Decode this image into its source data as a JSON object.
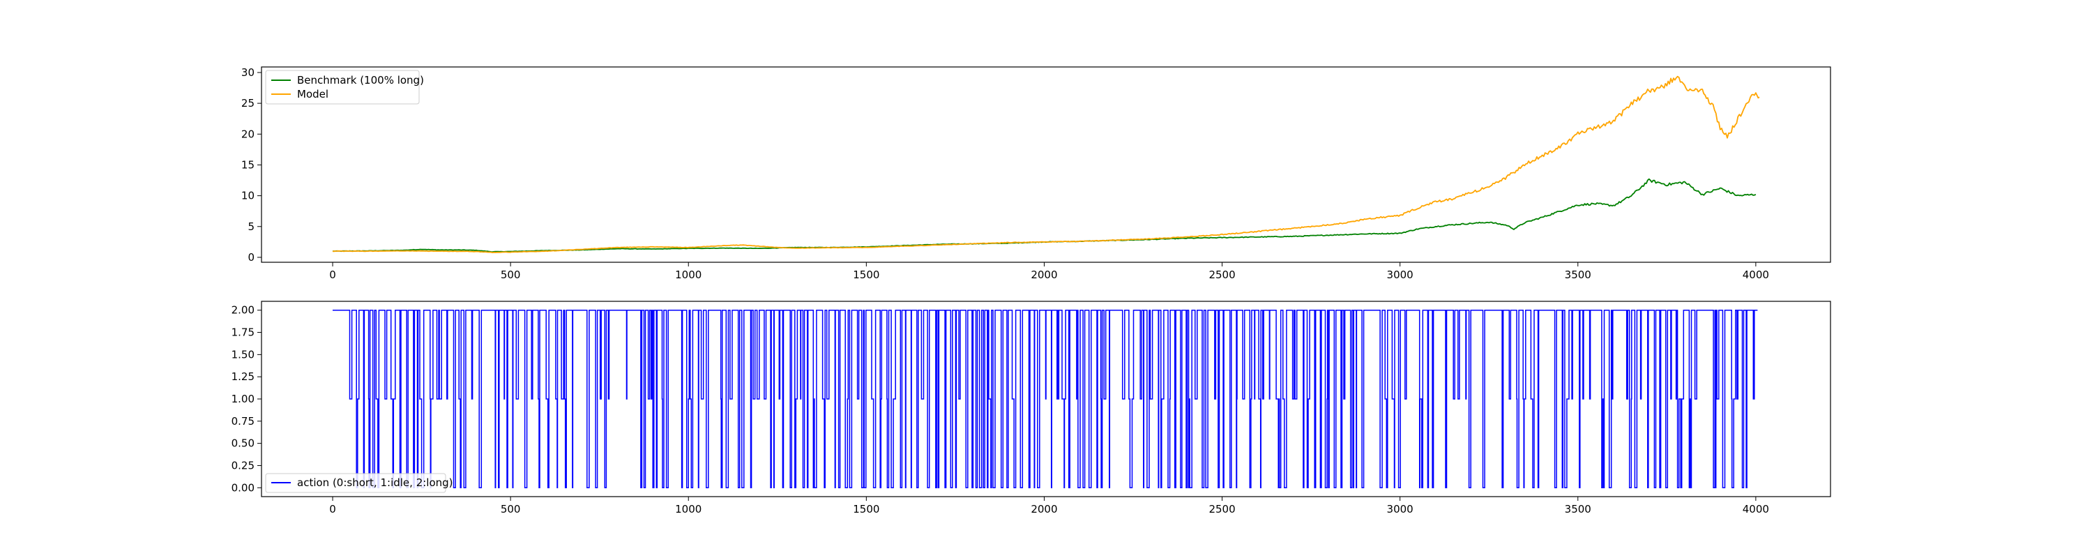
{
  "chart_data": [
    {
      "type": "line",
      "title": "",
      "xlabel": "",
      "ylabel": "",
      "xlim": [
        -200,
        4210
      ],
      "ylim": [
        -0.8,
        30.9
      ],
      "xticks": [
        0,
        500,
        1000,
        1500,
        2000,
        2500,
        3000,
        3500,
        4000
      ],
      "yticks": [
        0,
        5,
        10,
        15,
        20,
        25,
        30
      ],
      "grid": false,
      "legend_location": "upper-left",
      "series": [
        {
          "name": "Benchmark (100% long)",
          "color": "#008000",
          "x": [
            0,
            100,
            200,
            250,
            300,
            350,
            400,
            450,
            500,
            600,
            700,
            800,
            900,
            1000,
            1100,
            1200,
            1300,
            1400,
            1500,
            1600,
            1700,
            1800,
            1900,
            2000,
            2100,
            2200,
            2300,
            2400,
            2500,
            2600,
            2700,
            2800,
            2900,
            2950,
            3000,
            3050,
            3100,
            3150,
            3200,
            3250,
            3300,
            3320,
            3350,
            3400,
            3450,
            3500,
            3550,
            3600,
            3620,
            3650,
            3700,
            3750,
            3800,
            3850,
            3900,
            3950,
            4000
          ],
          "y": [
            1.0,
            1.05,
            1.15,
            1.3,
            1.2,
            1.2,
            1.15,
            0.9,
            0.95,
            1.1,
            1.2,
            1.4,
            1.35,
            1.45,
            1.5,
            1.45,
            1.6,
            1.6,
            1.7,
            1.9,
            2.1,
            2.2,
            2.3,
            2.5,
            2.6,
            2.75,
            2.9,
            3.1,
            3.2,
            3.3,
            3.4,
            3.6,
            3.8,
            3.85,
            3.9,
            4.6,
            5.0,
            5.3,
            5.5,
            5.7,
            5.2,
            4.6,
            5.6,
            6.5,
            7.5,
            8.5,
            8.7,
            8.4,
            9.0,
            10.0,
            12.5,
            11.8,
            12.2,
            10.2,
            11.2,
            10.0,
            10.2
          ]
        },
        {
          "name": "Model",
          "color": "#FFA500",
          "x": [
            0,
            100,
            200,
            300,
            400,
            450,
            500,
            600,
            700,
            800,
            900,
            1000,
            1100,
            1150,
            1200,
            1250,
            1300,
            1400,
            1500,
            1600,
            1700,
            1800,
            1900,
            2000,
            2100,
            2200,
            2300,
            2400,
            2500,
            2600,
            2700,
            2800,
            2850,
            2900,
            2950,
            3000,
            3050,
            3100,
            3150,
            3200,
            3250,
            3300,
            3350,
            3400,
            3450,
            3500,
            3550,
            3600,
            3650,
            3700,
            3750,
            3780,
            3800,
            3850,
            3880,
            3900,
            3920,
            3950,
            4000,
            4010
          ],
          "y": [
            1.0,
            1.0,
            1.05,
            1.0,
            0.95,
            0.8,
            0.85,
            1.0,
            1.3,
            1.6,
            1.7,
            1.6,
            1.9,
            2.0,
            1.8,
            1.6,
            1.5,
            1.55,
            1.6,
            1.8,
            2.0,
            2.2,
            2.4,
            2.5,
            2.6,
            2.8,
            3.0,
            3.3,
            3.7,
            4.2,
            4.7,
            5.3,
            5.6,
            6.2,
            6.5,
            6.8,
            8.0,
            9.0,
            9.5,
            10.5,
            11.5,
            13.0,
            15.0,
            16.5,
            18.0,
            20.0,
            21.0,
            22.0,
            25.0,
            27.0,
            28.0,
            29.5,
            27.5,
            27.0,
            24.5,
            21.0,
            19.5,
            22.5,
            27.0,
            26.0
          ]
        }
      ]
    },
    {
      "type": "line",
      "title": "",
      "xlabel": "",
      "ylabel": "",
      "xlim": [
        -200,
        4210
      ],
      "ylim": [
        -0.1,
        2.1
      ],
      "xticks": [
        0,
        500,
        1000,
        1500,
        2000,
        2500,
        3000,
        3500,
        4000
      ],
      "yticks": [
        0.0,
        0.25,
        0.5,
        0.75,
        1.0,
        1.25,
        1.5,
        1.75,
        2.0
      ],
      "ytick_labels": [
        "0.00",
        "0.25",
        "0.50",
        "0.75",
        "1.00",
        "1.25",
        "1.50",
        "1.75",
        "2.00"
      ],
      "grid": false,
      "legend_location": "lower-left",
      "description_of_data": "step series of actions switching between 0, 1 and 2 over steps 0-4005",
      "series": [
        {
          "name": "action (0:short, 1:idle, 2:long)",
          "color": "#0000FF",
          "x_start": 0,
          "x_end": 4005,
          "values": [
            0,
            1,
            2
          ]
        }
      ]
    }
  ]
}
